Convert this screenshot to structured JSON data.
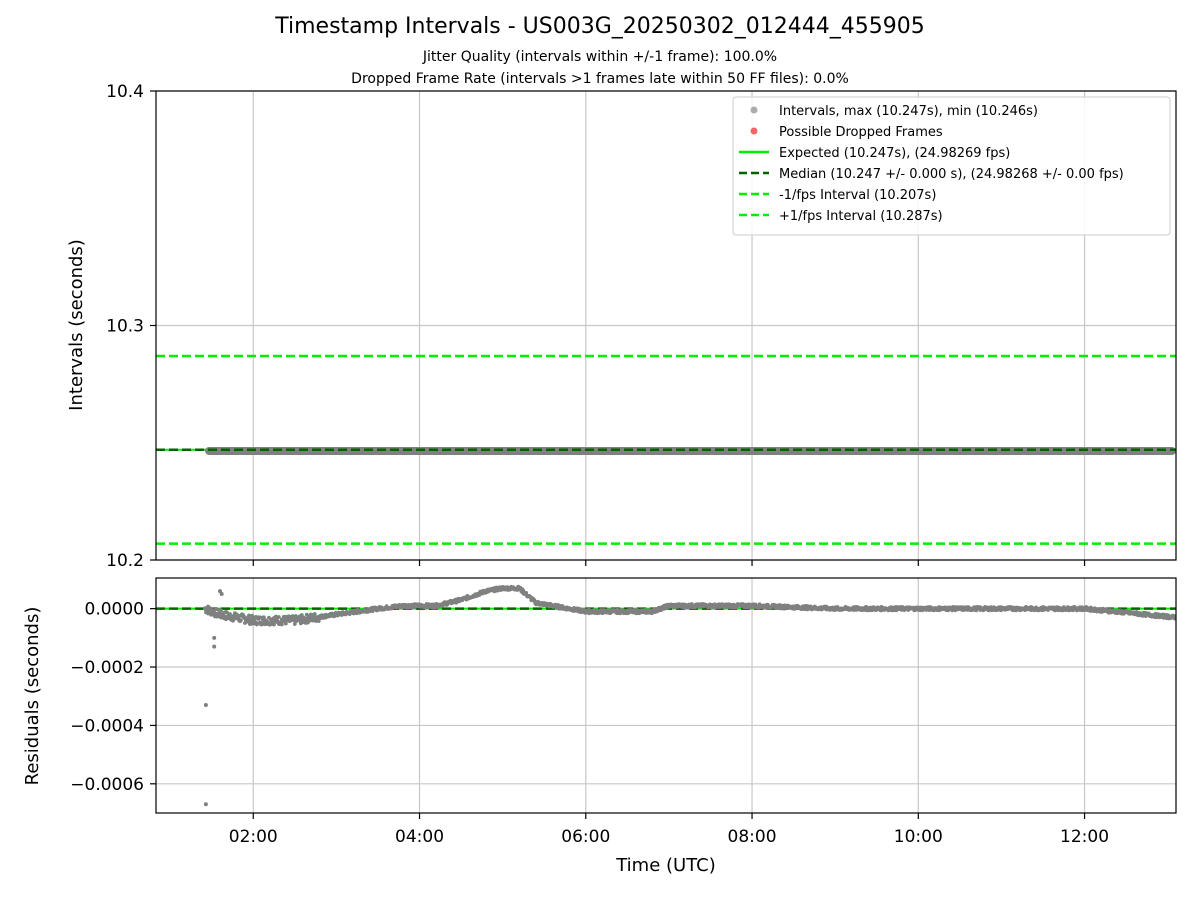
{
  "title": "Timestamp Intervals - US003G_20250302_012444_455905",
  "subtitle_lines": [
    "Jitter Quality (intervals within +/-1 frame): 100.0%",
    "Dropped Frame Rate (intervals >1 frames late within 50 FF files): 0.0%"
  ],
  "colors": {
    "intervals": "#808080",
    "dropped": "#f04040",
    "expected": "#00ee00",
    "median": "#006400",
    "band": "#00ee00",
    "grid": "#c8c8c8"
  },
  "chart_data": [
    {
      "type": "scatter",
      "ylabel": "Intervals (seconds)",
      "x_range_hours": [
        0.83,
        13.1
      ],
      "ylim": [
        10.2,
        10.4
      ],
      "y_ticks": [
        "10.2",
        "10.3",
        "10.4"
      ],
      "grid": true,
      "legend_position": "top-right",
      "legend": [
        {
          "label": "Intervals, max (10.247s), min (10.246s)",
          "kind": "dot",
          "color_key": "intervals"
        },
        {
          "label": "Possible Dropped Frames",
          "kind": "dot",
          "color_key": "dropped"
        },
        {
          "label": "Expected (10.247s), (24.98269 fps)",
          "kind": "line",
          "color_key": "expected"
        },
        {
          "label": "Median (10.247 +/- 0.000 s), (24.98268 +/- 0.00 fps)",
          "kind": "dash",
          "color_key": "median"
        },
        {
          "label": "-1/fps Interval (10.207s)",
          "kind": "dash",
          "color_key": "band"
        },
        {
          "label": "+1/fps Interval (10.287s)",
          "kind": "dash",
          "color_key": "band"
        }
      ],
      "lines": {
        "expected": 10.247,
        "median": 10.247,
        "minus_1_fps": 10.207,
        "plus_1_fps": 10.287
      },
      "intervals": {
        "x_start_hours": 1.42,
        "x_end_hours": 13.1,
        "y_max": 10.247,
        "y_min": 10.246
      },
      "dropped_frames": []
    },
    {
      "type": "scatter",
      "xlabel": "Time (UTC)",
      "ylabel": "Residuals (seconds)",
      "ylim": [
        -0.0007,
        0.000105
      ],
      "y_ticks": [
        "0.0000",
        "−0.0002",
        "−0.0004",
        "−0.0006"
      ],
      "y_tick_values": [
        0.0,
        -0.0002,
        -0.0004,
        -0.0006
      ],
      "x_ticks": [
        "02:00",
        "04:00",
        "06:00",
        "08:00",
        "10:00",
        "12:00"
      ],
      "x_tick_values_hours": [
        2,
        4,
        6,
        8,
        10,
        12
      ],
      "grid": true,
      "reference_lines": {
        "expected": 0.0,
        "median": 0.0
      },
      "residual_outliers": [
        {
          "x": 1.43,
          "y": -0.00067
        },
        {
          "x": 1.43,
          "y": -0.00033
        },
        {
          "x": 1.53,
          "y": -0.00013
        },
        {
          "x": 1.53,
          "y": -0.0001
        },
        {
          "x": 1.6,
          "y": 6e-05
        },
        {
          "x": 1.62,
          "y": 5e-05
        }
      ],
      "residual_trend": [
        {
          "x": 1.42,
          "y": 0.0
        },
        {
          "x": 1.6,
          "y": -2e-05
        },
        {
          "x": 2.0,
          "y": -4e-05
        },
        {
          "x": 2.5,
          "y": -4e-05
        },
        {
          "x": 3.0,
          "y": -2e-05
        },
        {
          "x": 3.5,
          "y": 0.0
        },
        {
          "x": 3.8,
          "y": 1e-05
        },
        {
          "x": 4.2,
          "y": 1e-05
        },
        {
          "x": 4.5,
          "y": 3e-05
        },
        {
          "x": 4.8,
          "y": 6e-05
        },
        {
          "x": 5.0,
          "y": 7e-05
        },
        {
          "x": 5.2,
          "y": 7e-05
        },
        {
          "x": 5.4,
          "y": 2e-05
        },
        {
          "x": 6.0,
          "y": -1e-05
        },
        {
          "x": 6.8,
          "y": -1e-05
        },
        {
          "x": 7.0,
          "y": 1e-05
        },
        {
          "x": 8.0,
          "y": 1e-05
        },
        {
          "x": 9.0,
          "y": 0.0
        },
        {
          "x": 10.0,
          "y": 0.0
        },
        {
          "x": 11.0,
          "y": 0.0
        },
        {
          "x": 12.0,
          "y": 0.0
        },
        {
          "x": 13.1,
          "y": -3e-05
        }
      ]
    }
  ]
}
